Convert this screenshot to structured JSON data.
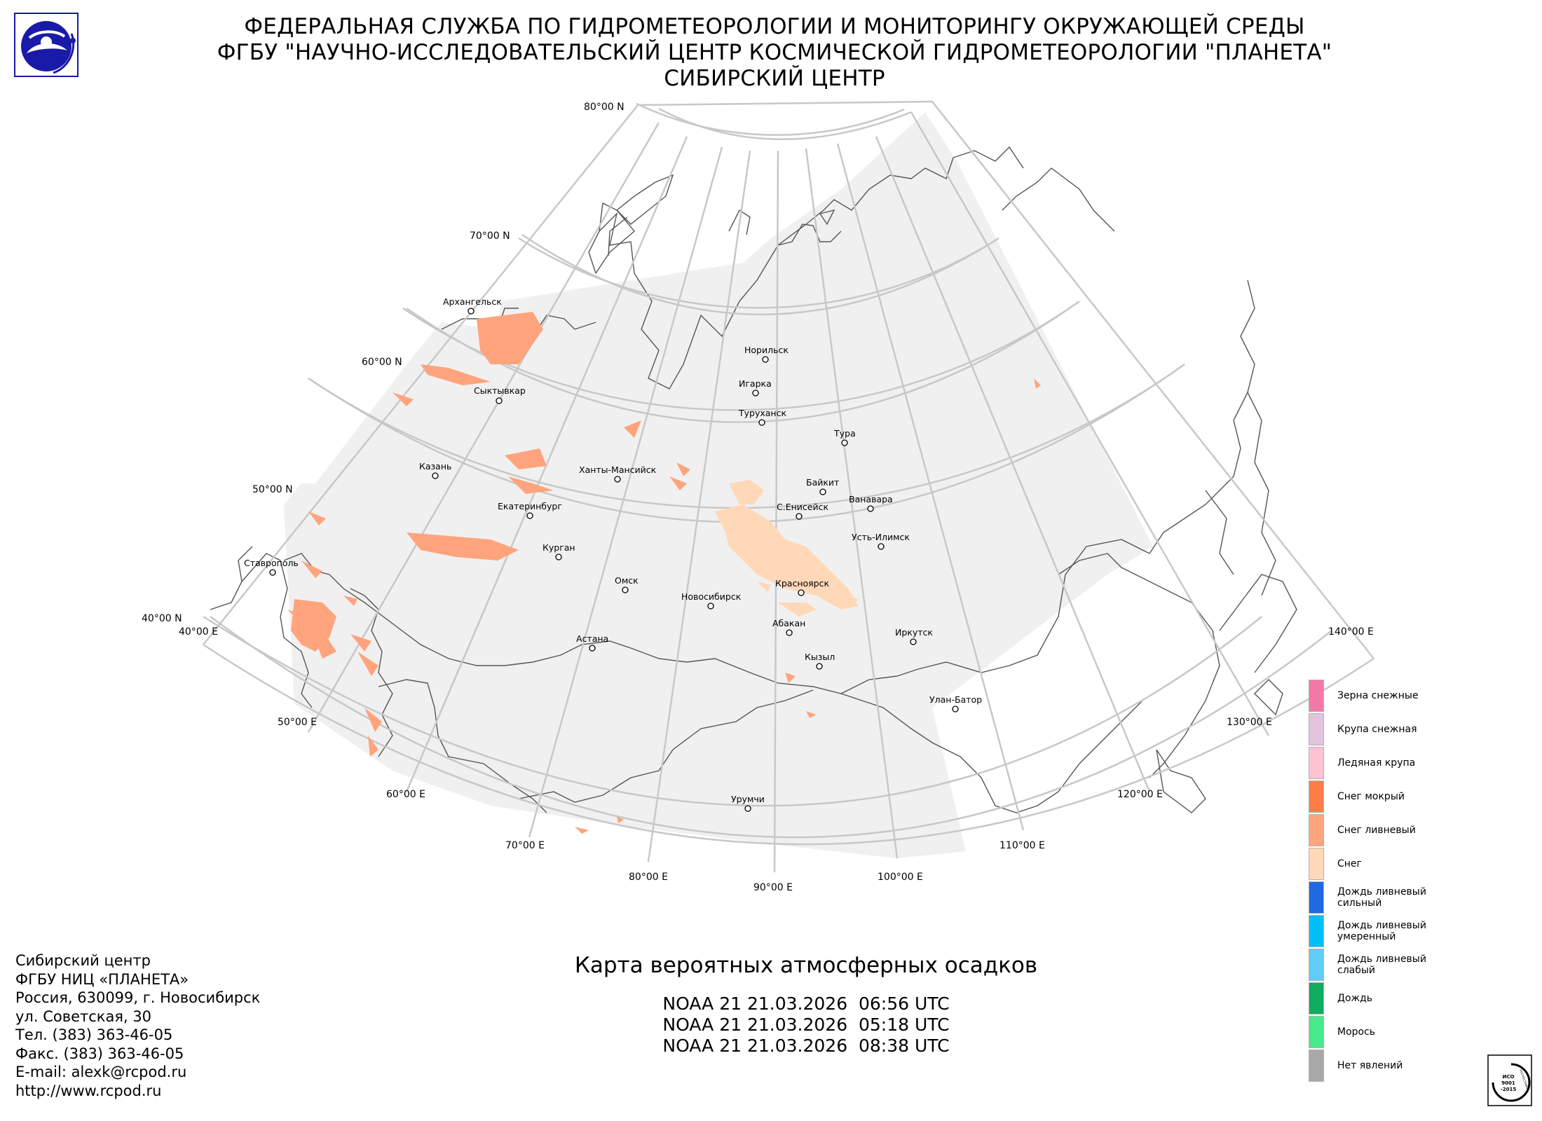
{
  "header": {
    "line1": "ФЕДЕРАЛЬНАЯ СЛУЖБА ПО ГИДРОМЕТЕОРОЛОГИИ И МОНИТОРИНГУ ОКРУЖАЮЩЕЙ СРЕДЫ",
    "line2": "ФГБУ \"НАУЧНО-ИССЛЕДОВАТЕЛЬСКИЙ ЦЕНТР КОСМИЧЕСКОЙ ГИДРОМЕТЕОРОЛОГИИ \"ПЛАНЕТА\"",
    "line3": "СИБИРСКИЙ ЦЕНТР"
  },
  "colors": {
    "coverage": "#f0f0f0",
    "graticule": "#c8c8c8",
    "coastline": "#555555",
    "snow": "#ffd8b8",
    "snow_shower": "#ffa47c"
  },
  "map": {
    "lat_labels": [
      "80°00 N",
      "70°00 N",
      "60°00 N",
      "50°00 N",
      "40°00 N"
    ],
    "lon_labels": [
      "40°00 E",
      "50°00 E",
      "60°00 E",
      "70°00 E",
      "80°00 E",
      "90°00 E",
      "100°00 E",
      "110°00 E",
      "120°00 E",
      "130°00 E",
      "140°00 E"
    ],
    "cities": [
      {
        "name": "Архангельск"
      },
      {
        "name": "Сыктывкар"
      },
      {
        "name": "Казань"
      },
      {
        "name": "Екатеринбург"
      },
      {
        "name": "Курган"
      },
      {
        "name": "Ставрополь"
      },
      {
        "name": "Ханты-Мансийск"
      },
      {
        "name": "Омск"
      },
      {
        "name": "Астана"
      },
      {
        "name": "Новосибирск"
      },
      {
        "name": "Норильск"
      },
      {
        "name": "Игарка"
      },
      {
        "name": "Туруханск"
      },
      {
        "name": "Тура"
      },
      {
        "name": "Байкит"
      },
      {
        "name": "С.Енисейск"
      },
      {
        "name": "Ванавара"
      },
      {
        "name": "Усть-Илимск"
      },
      {
        "name": "Красноярск"
      },
      {
        "name": "Абакан"
      },
      {
        "name": "Кызыл"
      },
      {
        "name": "Иркутск"
      },
      {
        "name": "Улан-Батор"
      },
      {
        "name": "Урумчи"
      }
    ]
  },
  "legend": [
    {
      "label": "Зерна снежные",
      "color": "#f47aa6"
    },
    {
      "label": "Крупа снежная",
      "color": "#e2c4dc"
    },
    {
      "label": "Ледяная крупа",
      "color": "#ffc2d1"
    },
    {
      "label": "Снег мокрый",
      "color": "#ff7e48"
    },
    {
      "label": "Снег ливневый",
      "color": "#ffa47c"
    },
    {
      "label": "Снег",
      "color": "#ffd8b8"
    },
    {
      "label": "Дождь ливневый\nсильный",
      "color": "#2068e0"
    },
    {
      "label": "Дождь ливневый\nумеренный",
      "color": "#00bff8"
    },
    {
      "label": "Дождь ливневый\nслабый",
      "color": "#60cdf8"
    },
    {
      "label": "Дождь",
      "color": "#10ac60"
    },
    {
      "label": "Морось",
      "color": "#48ea8c"
    },
    {
      "label": "Нет явлений",
      "color": "#a8a8a8"
    }
  ],
  "contact": {
    "line1": "Сибирский центр",
    "line2": "ФГБУ НИЦ «ПЛАНЕТА»",
    "line3": "Россия, 630099, г. Новосибирск",
    "line4": "ул. Советская, 30",
    "line5": "Тел. (383) 363-46-05",
    "line6": "Факс. (383) 363-46-05",
    "line7": "E-mail: alexk@rcpod.ru",
    "line8": "http://www.rcpod.ru"
  },
  "product": {
    "title": "Карта вероятных атмосферных осадков",
    "passes": [
      "NOAA 21 21.03.2026  06:56 UTC",
      "NOAA 21 21.03.2026  05:18 UTC",
      "NOAA 21 21.03.2026  08:38 UTC"
    ]
  },
  "iso_badge": {
    "line1": "ИСО",
    "line2": "9001",
    "line3": "-2015",
    "ring_text": "РОСПОСТАВКИ"
  }
}
